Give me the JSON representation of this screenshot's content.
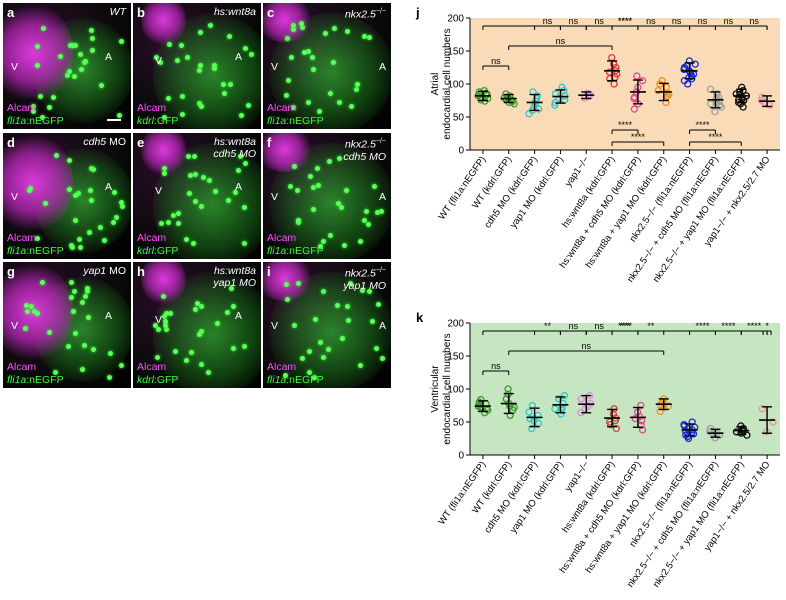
{
  "panels": [
    {
      "letter": "a",
      "title": "WT",
      "sup": "",
      "line2": "",
      "marker1": "Alcam",
      "marker2_it": "fli1a",
      "marker2_rest": ":nEGFP",
      "v": "V",
      "a": "A"
    },
    {
      "letter": "b",
      "title": "hs:wnt8a",
      "sup": "",
      "line2": "",
      "marker1": "Alcam",
      "marker2_it": "kdrl",
      "marker2_rest": ":GFP",
      "v": "V",
      "a": "A"
    },
    {
      "letter": "c",
      "title": "nkx2.5",
      "sup": "−/−",
      "line2": "",
      "marker1": "Alcam",
      "marker2_it": "fli1a",
      "marker2_rest": ":nEGFP",
      "v": "V",
      "a": "A"
    },
    {
      "letter": "d",
      "title": "cdh5",
      "sup": "",
      "line2": " MO",
      "marker1": "Alcam",
      "marker2_it": "fli1a",
      "marker2_rest": ":nEGFP",
      "v": "V",
      "a": "A"
    },
    {
      "letter": "e",
      "title": "hs:wnt8a",
      "sup": "",
      "line2": "cdh5 MO",
      "marker1": "Alcam",
      "marker2_it": "kdrl",
      "marker2_rest": ":GFP",
      "v": "V",
      "a": "A"
    },
    {
      "letter": "f",
      "title": "nkx2.5",
      "sup": "−/−",
      "line2": "cdh5 MO",
      "marker1": "Alcam",
      "marker2_it": "fli1a",
      "marker2_rest": ":nEGFP",
      "v": "V",
      "a": "A"
    },
    {
      "letter": "g",
      "title": "yap1",
      "sup": "",
      "line2": " MO",
      "marker1": "Alcam",
      "marker2_it": "fli1a",
      "marker2_rest": ":nEGFP",
      "v": "V",
      "a": "A"
    },
    {
      "letter": "h",
      "title": "hs:wnt8a",
      "sup": "",
      "line2": "yap1 MO",
      "marker1": "Alcam",
      "marker2_it": "kdrl",
      "marker2_rest": ":GFP",
      "v": "V",
      "a": "A"
    },
    {
      "letter": "i",
      "title": "nkx2.5",
      "sup": "−/−",
      "line2": "yap1 MO",
      "marker1": "Alcam",
      "marker2_it": "fli1a",
      "marker2_rest": ":nEGFP",
      "v": "V",
      "a": "A"
    }
  ],
  "chart_data": [
    {
      "panel": "j",
      "type": "scatter",
      "background": "#f9dbb8",
      "ylabel": [
        "Atrial",
        "endocardial cell numbers"
      ],
      "ylim": [
        0,
        200
      ],
      "yticks": [
        0,
        50,
        100,
        150,
        200
      ],
      "categories": [
        "WT (fli1a:nEGFP)",
        "WT (kdrl:GFP)",
        "cdh5 MO (kdrl:GFP)",
        "yap1 MO (kdrl:GFP)",
        "yap1−/−",
        "hs:wnt8a (kdrl:GFP)",
        "hs:wnt8a + cdh5 MO (kdrl:GFP)",
        "hs:wnt8a + yap1 MO (kdrl:GFP)",
        "nkx2.5−/− (fli1a:nEGFP)",
        "nkx2.5−/− + cdh5 MO (fli1a:nEGFP)",
        "nkx2.5−/− + yap1 MO (fli1a:nEGFP)",
        "yap1−/− + nkx2.5/2.7 MO"
      ],
      "colors": [
        "#3a9a2a",
        "#3a9a2a",
        "#2ec6c6",
        "#2ec6c6",
        "#e08ad8",
        "#e03a3a",
        "#e04890",
        "#f0901a",
        "#1a2ad8",
        "#a0a0a0",
        "#111111",
        "#f090a0"
      ],
      "means": [
        82,
        78,
        72,
        81,
        83,
        120,
        88,
        88,
        120,
        76,
        82,
        74
      ],
      "sd": [
        7,
        6,
        12,
        10,
        5,
        15,
        18,
        13,
        12,
        12,
        10,
        8
      ],
      "points": [
        [
          74,
          78,
          80,
          82,
          84,
          86,
          88,
          79,
          83,
          76,
          90,
          85
        ],
        [
          70,
          72,
          76,
          78,
          80,
          82,
          85,
          75,
          79,
          73
        ],
        [
          55,
          60,
          65,
          70,
          74,
          78,
          82,
          88,
          62
        ],
        [
          68,
          72,
          78,
          82,
          85,
          90,
          95,
          76
        ],
        [
          79,
          82,
          84,
          86
        ],
        [
          100,
          108,
          115,
          120,
          125,
          130,
          140,
          110,
          118
        ],
        [
          62,
          70,
          80,
          88,
          95,
          105,
          112,
          78
        ],
        [
          72,
          80,
          85,
          90,
          95,
          100,
          105,
          82
        ],
        [
          100,
          105,
          110,
          115,
          118,
          122,
          125,
          128,
          130,
          135,
          108,
          112,
          120,
          124,
          116
        ],
        [
          58,
          65,
          70,
          75,
          80,
          85,
          92,
          68,
          72,
          78
        ],
        [
          65,
          70,
          75,
          78,
          80,
          82,
          85,
          88,
          90,
          95,
          72,
          76,
          84
        ],
        [
          68,
          72,
          75,
          80
        ]
      ],
      "brackets": [
        {
          "from": 0,
          "to": 11,
          "label": "****",
          "level": 0
        },
        {
          "from": 1,
          "to": 5,
          "label": "ns",
          "level": 1
        },
        {
          "from": 0,
          "to": 1,
          "label": "ns",
          "level": 2
        },
        {
          "from": 2,
          "to": 3,
          "label": "ns",
          "level": 0
        },
        {
          "from": 3,
          "to": 4,
          "label": "ns",
          "level": 0
        },
        {
          "from": 4,
          "to": 5,
          "label": "ns",
          "level": 0
        },
        {
          "from": 5,
          "to": 6,
          "label": "****",
          "level": 0
        },
        {
          "from": 6,
          "to": 7,
          "label": "ns",
          "level": 0
        },
        {
          "from": 7,
          "to": 8,
          "label": "ns",
          "level": 0
        },
        {
          "from": 8,
          "to": 9,
          "label": "ns",
          "level": 0
        },
        {
          "from": 9,
          "to": 10,
          "label": "ns",
          "level": 0
        },
        {
          "from": 10,
          "to": 11,
          "label": "ns",
          "level": 0
        },
        {
          "from": 5,
          "to": 6,
          "label": "****",
          "level": -1
        },
        {
          "from": 5,
          "to": 7,
          "label": "****",
          "level": -2
        },
        {
          "from": 8,
          "to": 9,
          "label": "****",
          "level": -1
        },
        {
          "from": 8,
          "to": 10,
          "label": "****",
          "level": -2
        }
      ]
    },
    {
      "panel": "k",
      "type": "scatter",
      "background": "#c6e6c2",
      "ylabel": [
        "Ventricular",
        "endocardial cell numbers"
      ],
      "ylim": [
        0,
        200
      ],
      "yticks": [
        0,
        50,
        100,
        150,
        200
      ],
      "categories": [
        "WT (fli1a:nEGFP)",
        "WT (kdrl:GFP)",
        "cdh5 MO (kdrl:GFP)",
        "yap1 MO (kdrl:GFP)",
        "yap1−/−",
        "hs:wnt8a (kdrl:GFP)",
        "hs:wnt8a + cdh5 MO (kdrl:GFP)",
        "hs:wnt8a + yap1 MO (kdrl:GFP)",
        "nkx2.5−/− (fli1a:nEGFP)",
        "nkx2.5−/− + cdh5 MO (fli1a:nEGFP)",
        "nkx2.5−/− + yap1 MO (fli1a:nEGFP)",
        "yap1−/− + nkx2.5/2.7 MO"
      ],
      "colors": [
        "#3a9a2a",
        "#3a9a2a",
        "#2ec6c6",
        "#2ec6c6",
        "#e08ad8",
        "#e03a3a",
        "#e04890",
        "#f0901a",
        "#1a2ad8",
        "#a0a0a0",
        "#111111",
        "#f090a0"
      ],
      "means": [
        74,
        78,
        57,
        76,
        77,
        56,
        57,
        77,
        38,
        33,
        37,
        53
      ],
      "sd": [
        8,
        15,
        14,
        12,
        13,
        13,
        15,
        8,
        9,
        6,
        6,
        20
      ],
      "points": [
        [
          64,
          68,
          72,
          74,
          76,
          78,
          80,
          84,
          70,
          73
        ],
        [
          60,
          68,
          72,
          78,
          85,
          92,
          100,
          74
        ],
        [
          40,
          48,
          55,
          60,
          65,
          75,
          52
        ],
        [
          62,
          68,
          72,
          78,
          85,
          90,
          70
        ],
        [
          64,
          70,
          78,
          85,
          90,
          74
        ],
        [
          40,
          46,
          52,
          56,
          62,
          70,
          50
        ],
        [
          38,
          45,
          52,
          58,
          65,
          75,
          55
        ],
        [
          66,
          72,
          76,
          80,
          85,
          74
        ],
        [
          25,
          30,
          34,
          38,
          42,
          46,
          50,
          36,
          40,
          32,
          28,
          44
        ],
        [
          26,
          30,
          33,
          36,
          40,
          32
        ],
        [
          30,
          33,
          36,
          40,
          44,
          35,
          38
        ],
        [
          35,
          50,
          70
        ]
      ],
      "brackets": [
        {
          "from": 0,
          "to": 11,
          "label": "****",
          "level": 0
        },
        {
          "from": 1,
          "to": 7,
          "label": "ns",
          "level": 1
        },
        {
          "from": 0,
          "to": 1,
          "label": "ns",
          "level": 2
        },
        {
          "from": 2,
          "to": 3,
          "label": "**",
          "level": 0
        },
        {
          "from": 3,
          "to": 4,
          "label": "ns",
          "level": 0
        },
        {
          "from": 4,
          "to": 5,
          "label": "ns",
          "level": 0
        },
        {
          "from": 5,
          "to": 6,
          "label": "***",
          "level": 0
        },
        {
          "from": 6,
          "to": 7,
          "label": "**",
          "level": 0
        },
        {
          "from": 8,
          "to": 9,
          "label": "****",
          "level": 0
        },
        {
          "from": 9,
          "to": 10,
          "label": "****",
          "level": 0
        },
        {
          "from": 10,
          "to": 11,
          "label": "****",
          "level": 0
        },
        {
          "from": 11,
          "to": 11,
          "label": "*",
          "level": 0
        }
      ]
    }
  ]
}
